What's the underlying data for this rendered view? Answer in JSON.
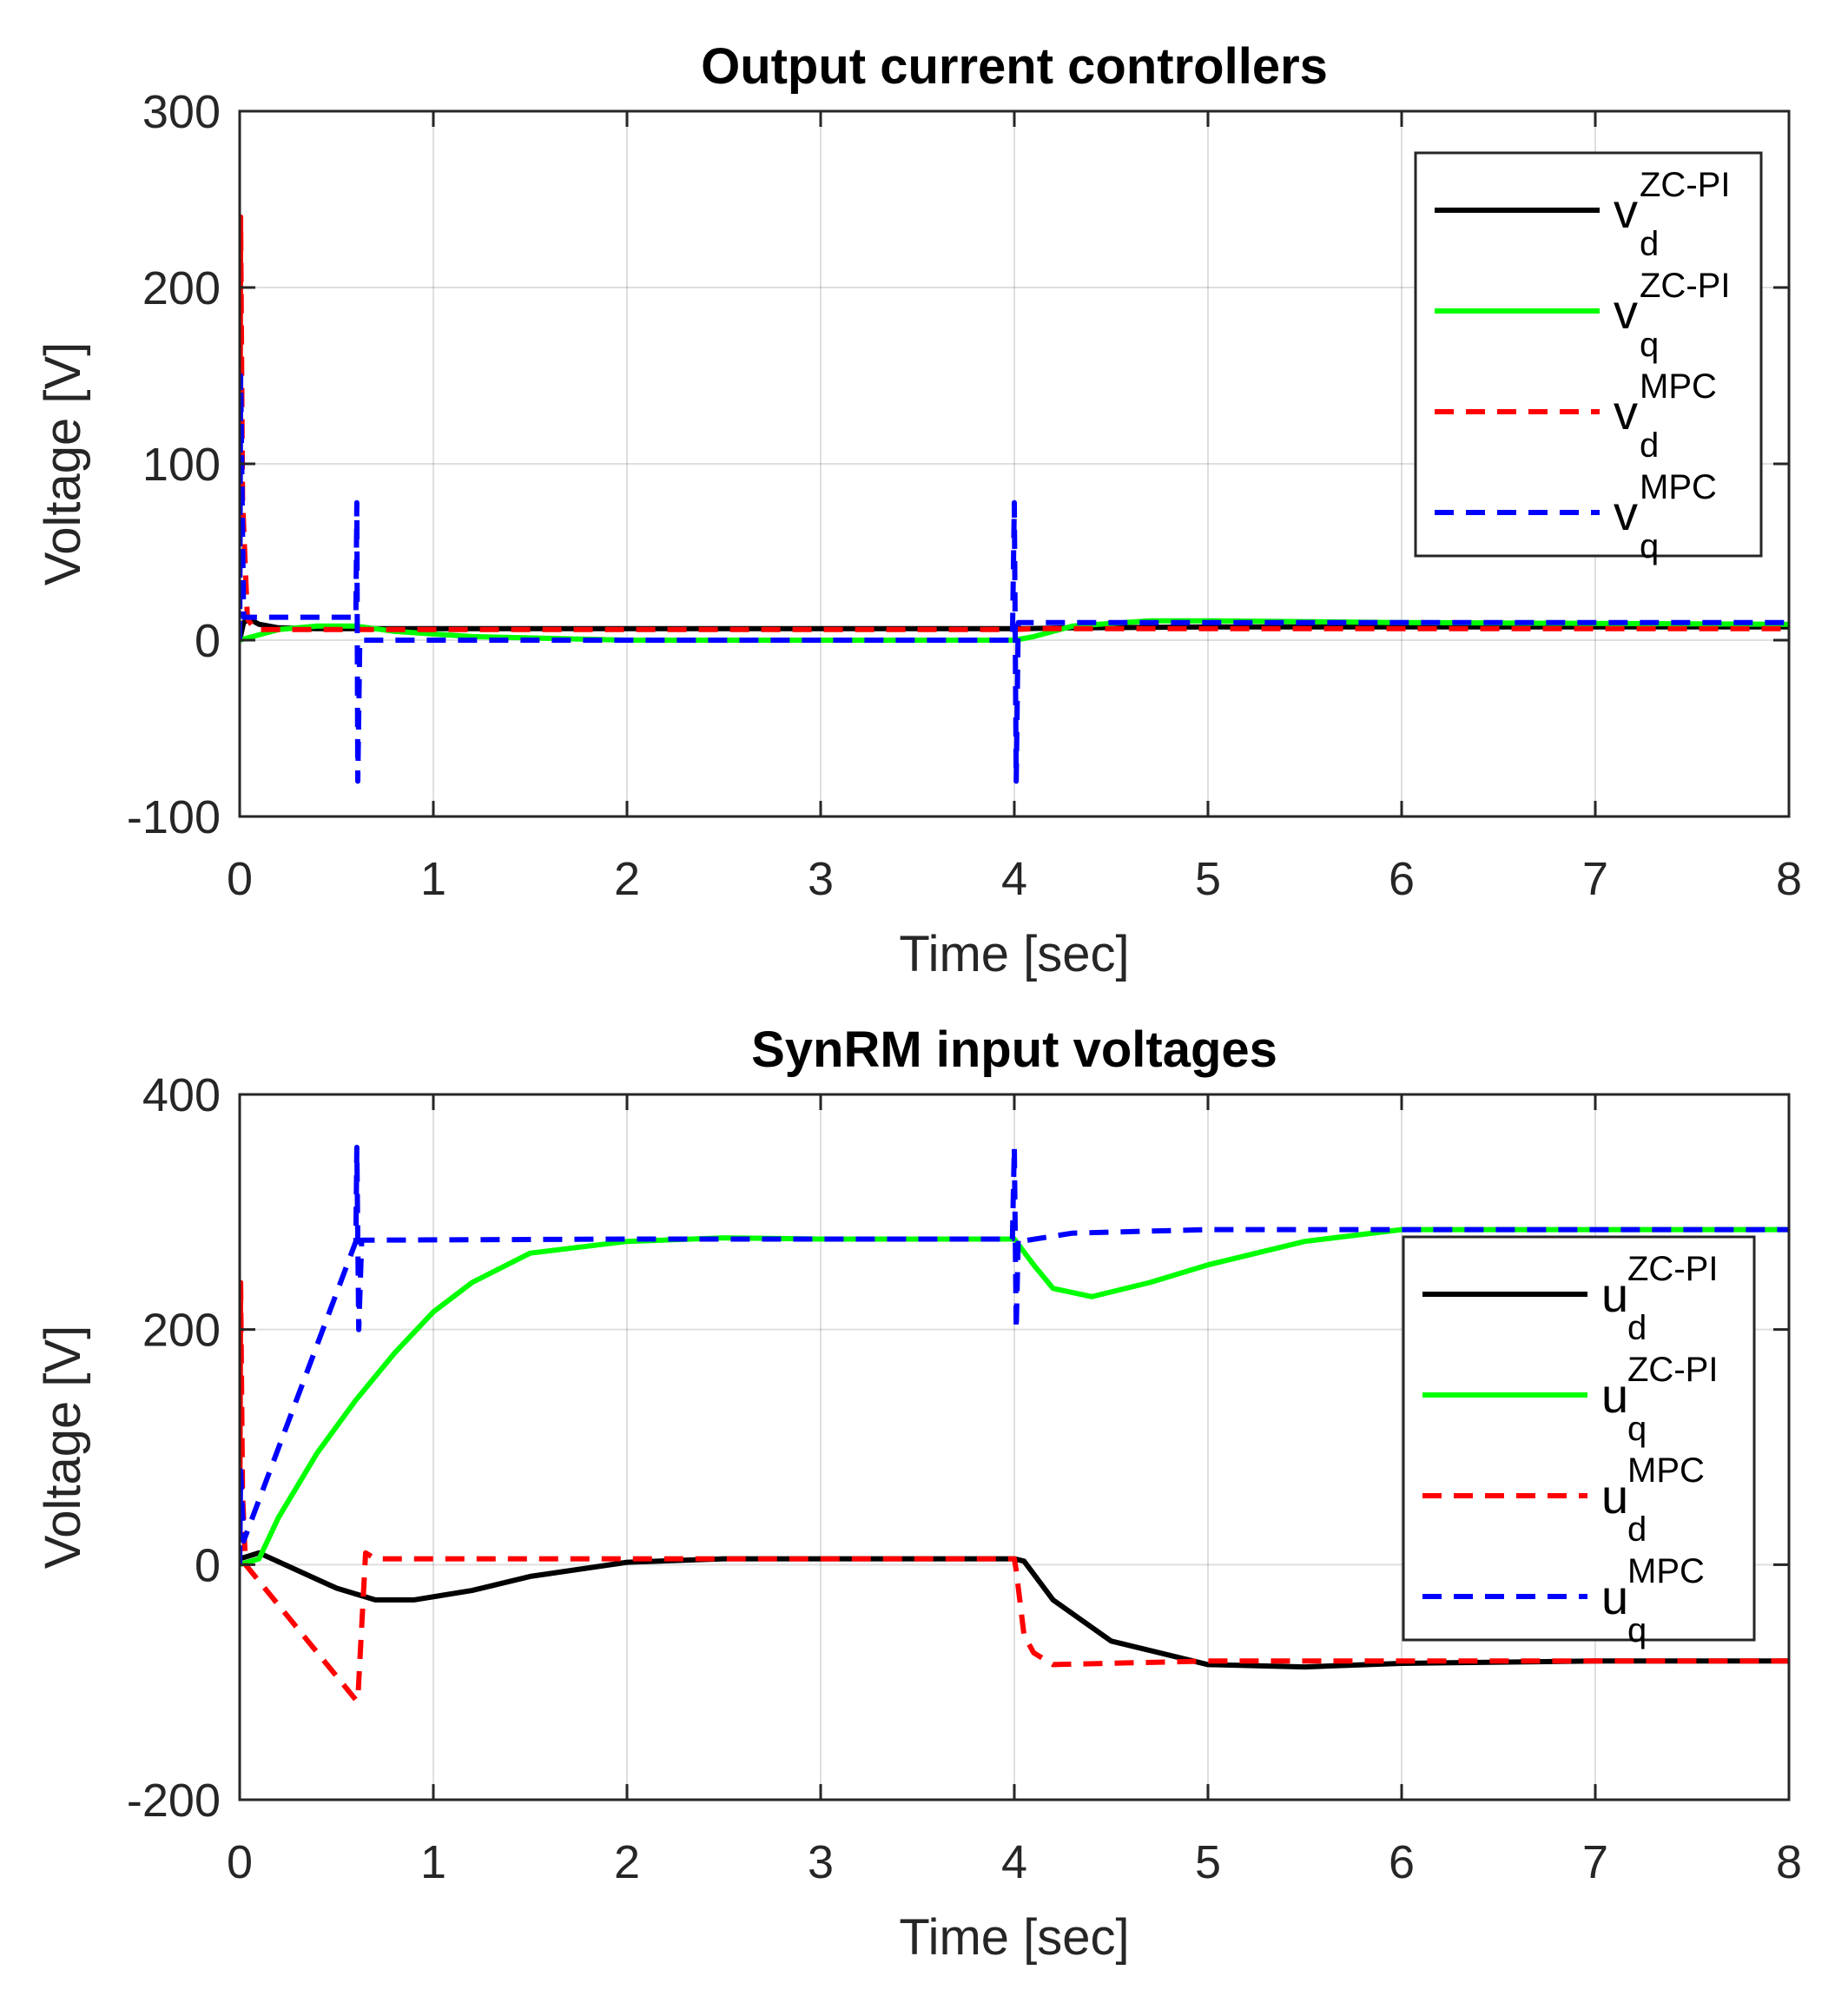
{
  "chart_data": [
    {
      "type": "line",
      "title": "Output current controllers",
      "xlabel": "Time [sec]",
      "ylabel": "Voltage [V]",
      "xlim": [
        0,
        8
      ],
      "ylim": [
        -100,
        300
      ],
      "xticks": [
        "0",
        "1",
        "2",
        "3",
        "4",
        "5",
        "6",
        "7",
        "8"
      ],
      "yticks": [
        "-100",
        "0",
        "100",
        "200",
        "300"
      ],
      "legend": {
        "position": "top-right",
        "entries": [
          {
            "base": "v",
            "sub": "d",
            "sup": "ZC-PI"
          },
          {
            "base": "v",
            "sub": "q",
            "sup": "ZC-PI"
          },
          {
            "base": "v",
            "sub": "d",
            "sup": "MPC"
          },
          {
            "base": "v",
            "sub": "q",
            "sup": "MPC"
          }
        ]
      },
      "series": [
        {
          "name": "vd ZC-PI",
          "color": "#000000",
          "style": "solid",
          "x": [
            0,
            0.02,
            0.05,
            0.1,
            0.2,
            0.4,
            0.6,
            1,
            2,
            3,
            4,
            4.05,
            4.3,
            5,
            6,
            7,
            8
          ],
          "y": [
            0,
            10,
            12,
            9,
            7,
            6.5,
            6.5,
            6.5,
            6.5,
            6.5,
            6.5,
            6.5,
            7,
            7.5,
            7.5,
            7.5,
            7.5
          ]
        },
        {
          "name": "vq ZC-PI",
          "color": "#00ff00",
          "style": "solid",
          "x": [
            0,
            0.1,
            0.2,
            0.4,
            0.6,
            0.8,
            1.2,
            2,
            3,
            4,
            4.1,
            4.3,
            4.7,
            5,
            6,
            7,
            8
          ],
          "y": [
            0,
            3,
            6,
            8,
            8,
            5,
            2,
            0,
            0,
            0,
            2,
            8,
            11,
            11,
            10,
            9.5,
            9
          ]
        },
        {
          "name": "vd MPC",
          "color": "#ff0000",
          "style": "dashed",
          "x": [
            0,
            0.005,
            0.015,
            0.04,
            0.08,
            0.2,
            0.6,
            2,
            4,
            4.1,
            5,
            6,
            8
          ],
          "y": [
            0,
            240,
            80,
            12,
            6,
            6,
            6,
            6,
            6,
            6.5,
            6.5,
            6.5,
            6.5
          ]
        },
        {
          "name": "vq MPC",
          "color": "#0000ff",
          "style": "dashed",
          "x": [
            0,
            0.005,
            0.02,
            0.05,
            0.6,
            0.605,
            0.61,
            0.62,
            2,
            3.99,
            4.0,
            4.01,
            4.02,
            4.2,
            5,
            6,
            8
          ],
          "y": [
            0,
            150,
            13,
            13,
            13,
            78,
            -80,
            0,
            0,
            0,
            78,
            -80,
            10,
            10,
            10,
            10,
            10
          ]
        }
      ]
    },
    {
      "type": "line",
      "title": "SynRM input voltages",
      "xlabel": "Time [sec]",
      "ylabel": "Voltage [V]",
      "xlim": [
        0,
        8
      ],
      "ylim": [
        -200,
        400
      ],
      "xticks": [
        "0",
        "1",
        "2",
        "3",
        "4",
        "5",
        "6",
        "7",
        "8"
      ],
      "yticks": [
        "-200",
        "0",
        "200",
        "400"
      ],
      "legend": {
        "position": "center-right",
        "entries": [
          {
            "base": "u",
            "sub": "d",
            "sup": "ZC-PI"
          },
          {
            "base": "u",
            "sub": "q",
            "sup": "ZC-PI"
          },
          {
            "base": "u",
            "sub": "d",
            "sup": "MPC"
          },
          {
            "base": "u",
            "sub": "q",
            "sup": "MPC"
          }
        ]
      },
      "series": [
        {
          "name": "ud ZC-PI",
          "color": "#000000",
          "style": "solid",
          "x": [
            0,
            0.1,
            0.3,
            0.5,
            0.7,
            0.9,
            1.2,
            1.5,
            2,
            2.5,
            3,
            4,
            4.05,
            4.2,
            4.5,
            5,
            5.5,
            6,
            7,
            8
          ],
          "y": [
            5,
            10,
            -5,
            -20,
            -30,
            -30,
            -22,
            -10,
            2,
            5,
            5,
            5,
            3,
            -30,
            -65,
            -85,
            -87,
            -84,
            -82,
            -82
          ]
        },
        {
          "name": "uq ZC-PI",
          "color": "#00ff00",
          "style": "solid",
          "x": [
            0,
            0.1,
            0.2,
            0.4,
            0.6,
            0.8,
            1,
            1.2,
            1.5,
            2,
            2.5,
            3,
            4,
            4.1,
            4.2,
            4.4,
            4.7,
            5,
            5.5,
            6,
            7,
            8
          ],
          "y": [
            0,
            5,
            40,
            95,
            140,
            180,
            215,
            240,
            265,
            275,
            278,
            277,
            277,
            255,
            235,
            228,
            240,
            255,
            275,
            285,
            285,
            285
          ]
        },
        {
          "name": "ud MPC",
          "color": "#ff0000",
          "style": "dashed",
          "x": [
            0,
            0.005,
            0.015,
            0.03,
            0.6,
            0.61,
            0.65,
            0.7,
            2,
            4,
            4.01,
            4.05,
            4.1,
            4.2,
            5,
            8
          ],
          "y": [
            0,
            240,
            60,
            0,
            -115,
            -115,
            10,
            5,
            5,
            5,
            -5,
            -60,
            -75,
            -85,
            -82,
            -82
          ]
        },
        {
          "name": "uq MPC",
          "color": "#0000ff",
          "style": "dashed",
          "x": [
            0,
            0.005,
            0.02,
            0.6,
            0.6,
            0.605,
            0.615,
            0.63,
            2,
            3.99,
            4.0,
            4.01,
            4.02,
            4.03,
            4.3,
            5,
            6,
            8
          ],
          "y": [
            0,
            80,
            20,
            275,
            275,
            355,
            200,
            276,
            277,
            277,
            355,
            200,
            277,
            275,
            282,
            285,
            285,
            285
          ]
        }
      ]
    }
  ]
}
